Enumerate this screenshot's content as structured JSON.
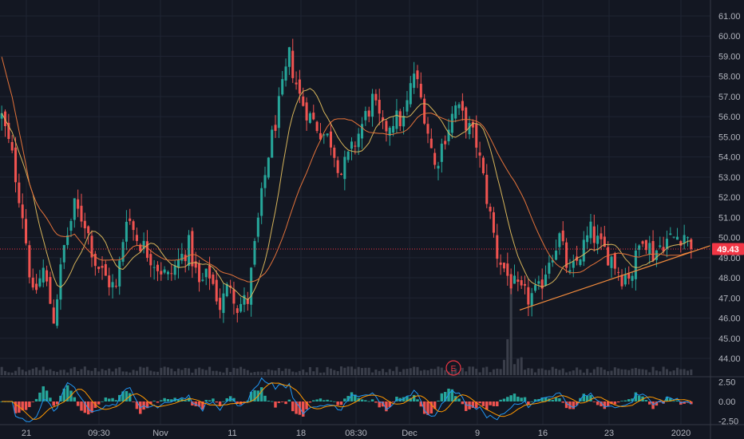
{
  "chart_data": {
    "type": "candlestick",
    "price_axis": {
      "ticks": [
        "61.00",
        "60.00",
        "59.00",
        "58.00",
        "57.00",
        "56.00",
        "55.00",
        "54.00",
        "53.00",
        "52.00",
        "51.00",
        "50.00",
        "49.00",
        "48.00",
        "47.00",
        "46.00",
        "45.00",
        "44.00"
      ],
      "range": [
        43.8,
        61.6
      ]
    },
    "last_price": {
      "label": "49.43",
      "value": 49.43
    },
    "oscillator_axis": {
      "ticks": [
        "2.50",
        "0.00",
        "-2.50"
      ],
      "range": [
        -3.2,
        3.2
      ]
    },
    "time_axis": {
      "ticks": [
        "21",
        "09:30",
        "Nov",
        "11",
        "18",
        "08:30",
        "Dec",
        "9",
        "16",
        "23",
        "2020"
      ]
    },
    "earnings_marker": "E",
    "close_path": [
      [
        0,
        56.0
      ],
      [
        3,
        54.0
      ],
      [
        6,
        51.2
      ],
      [
        9,
        47.0
      ],
      [
        12,
        48.4
      ],
      [
        15,
        46.0
      ],
      [
        18,
        49.5
      ],
      [
        21,
        51.5
      ],
      [
        24,
        50.8
      ],
      [
        27,
        48.8
      ],
      [
        30,
        48.0
      ],
      [
        33,
        47.4
      ],
      [
        36,
        51.2
      ],
      [
        39,
        50.0
      ],
      [
        42,
        49.3
      ],
      [
        45,
        48.6
      ],
      [
        48,
        48.0
      ],
      [
        51,
        48.8
      ],
      [
        54,
        49.6
      ],
      [
        57,
        47.6
      ],
      [
        60,
        48.2
      ],
      [
        63,
        46.6
      ],
      [
        66,
        47.8
      ],
      [
        68,
        46.6
      ],
      [
        71,
        46.9
      ],
      [
        74,
        50.8
      ],
      [
        77,
        54.2
      ],
      [
        80,
        56.5
      ],
      [
        83,
        59.0
      ],
      [
        86,
        57.0
      ],
      [
        89,
        56.0
      ],
      [
        92,
        55.3
      ],
      [
        95,
        54.8
      ],
      [
        98,
        53.2
      ],
      [
        101,
        54.3
      ],
      [
        104,
        55.6
      ],
      [
        107,
        56.8
      ],
      [
        110,
        55.3
      ],
      [
        113,
        55.9
      ],
      [
        116,
        55.8
      ],
      [
        119,
        58.2
      ],
      [
        122,
        56.2
      ],
      [
        125,
        53.5
      ],
      [
        128,
        55.1
      ],
      [
        131,
        56.5
      ],
      [
        134,
        55.7
      ],
      [
        137,
        54.7
      ],
      [
        140,
        52.0
      ],
      [
        143,
        49.2
      ],
      [
        146,
        48.1
      ],
      [
        149,
        47.3
      ],
      [
        152,
        47.0
      ],
      [
        155,
        47.3
      ],
      [
        158,
        49.0
      ],
      [
        161,
        50.0
      ],
      [
        164,
        48.0
      ],
      [
        167,
        49.2
      ],
      [
        170,
        50.3
      ],
      [
        173,
        49.5
      ],
      [
        176,
        49.0
      ],
      [
        179,
        48.1
      ],
      [
        182,
        48.3
      ],
      [
        185,
        50.2
      ],
      [
        188,
        49.2
      ],
      [
        191,
        49.8
      ],
      [
        194,
        50.0
      ],
      [
        197,
        50.2
      ],
      [
        199,
        49.43
      ]
    ],
    "candle_count": 200
  }
}
